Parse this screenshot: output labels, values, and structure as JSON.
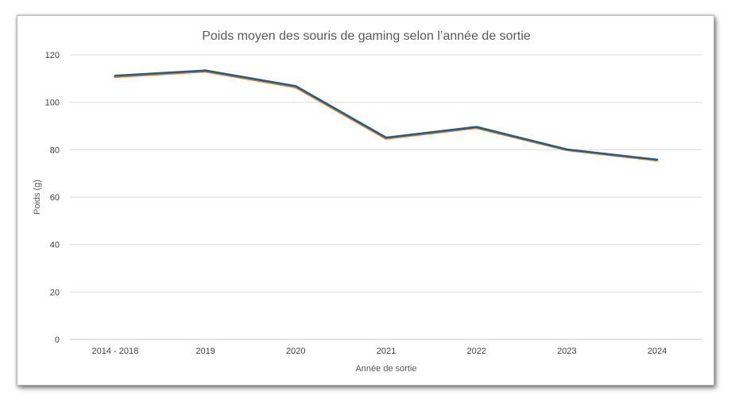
{
  "chart_data": {
    "type": "line",
    "title": "Poids moyen des souris de gaming selon l’année de sortie",
    "xlabel": "Année de sortie",
    "ylabel": "Poids (g)",
    "categories": [
      "2014 - 2018",
      "2019",
      "2020",
      "2021",
      "2022",
      "2023",
      "2024"
    ],
    "series": [
      {
        "values": [
          111,
          113.3,
          106.7,
          85,
          89.5,
          80.2,
          75.8
        ],
        "color": "#ed7d31"
      },
      {
        "values": [
          111.2,
          113.4,
          106.8,
          85.1,
          89.6,
          80.1,
          75.8
        ],
        "color": "#255e7e"
      }
    ],
    "ylim": [
      0,
      120
    ],
    "yticks": [
      0,
      20,
      40,
      60,
      80,
      100,
      120
    ],
    "grid": true,
    "legend": "none"
  }
}
